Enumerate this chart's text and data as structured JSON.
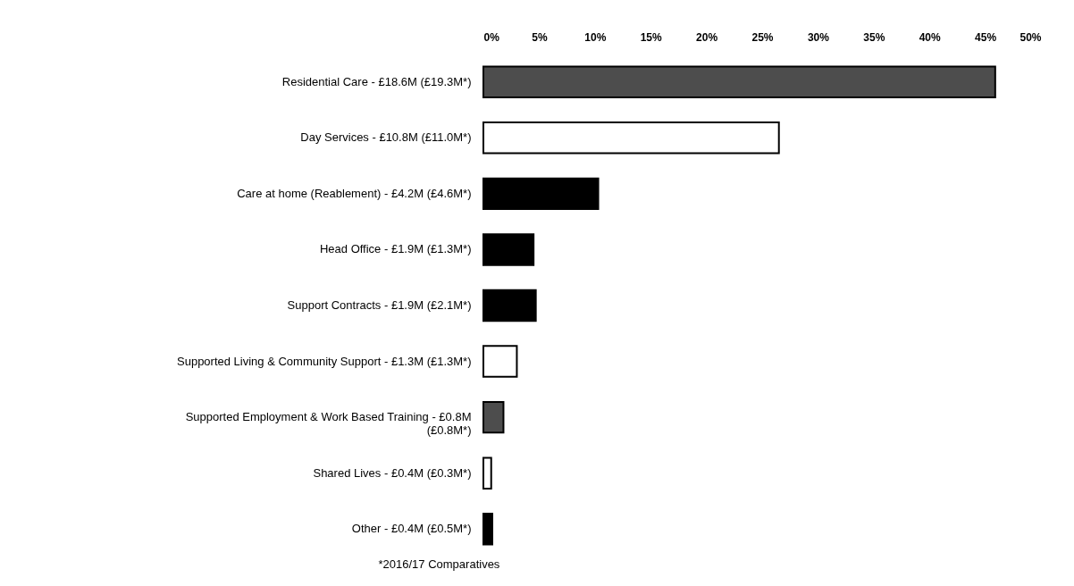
{
  "chart_data": {
    "type": "bar",
    "orientation": "horizontal",
    "categories": [
      "Residential Care - £18.6M (£19.3M*)",
      "Day Services - £10.8M (£11.0M*)",
      "Care at home (Reablement) - £4.2M (£4.6M*)",
      "Head Office - £1.9M (£1.3M*)",
      "Support Contracts - £1.9M (£2.1M*)",
      "Supported Living & Community Support - £1.3M (£1.3M*)",
      "Supported Employment & Work Based Training - £0.8M (£0.8M*)",
      "Shared Lives - £0.4M (£0.3M*)",
      "Other - £0.4M (£0.5M*)"
    ],
    "values": [
      45.9,
      26.5,
      10.3,
      4.5,
      4.7,
      3.0,
      1.8,
      0.7,
      0.8
    ],
    "colors": [
      "#4d4d4d",
      "#ffffff",
      "#000000",
      "#000000",
      "#000000",
      "#ffffff",
      "#4d4d4d",
      "#ffffff",
      "#000000"
    ],
    "xlim": [
      0,
      50
    ],
    "xticks": [
      {
        "value": 0,
        "label": "0%"
      },
      {
        "value": 5,
        "label": "5%"
      },
      {
        "value": 10,
        "label": "10%"
      },
      {
        "value": 15,
        "label": "15%"
      },
      {
        "value": 20,
        "label": "20%"
      },
      {
        "value": 25,
        "label": "25%"
      },
      {
        "value": 30,
        "label": "30%"
      },
      {
        "value": 35,
        "label": "35%"
      },
      {
        "value": 40,
        "label": "40%"
      },
      {
        "value": 45,
        "label": "45%"
      },
      {
        "value": 50,
        "label": "50%"
      }
    ],
    "grid": false,
    "annotations": [
      "*2016/17 Comparatives"
    ]
  }
}
